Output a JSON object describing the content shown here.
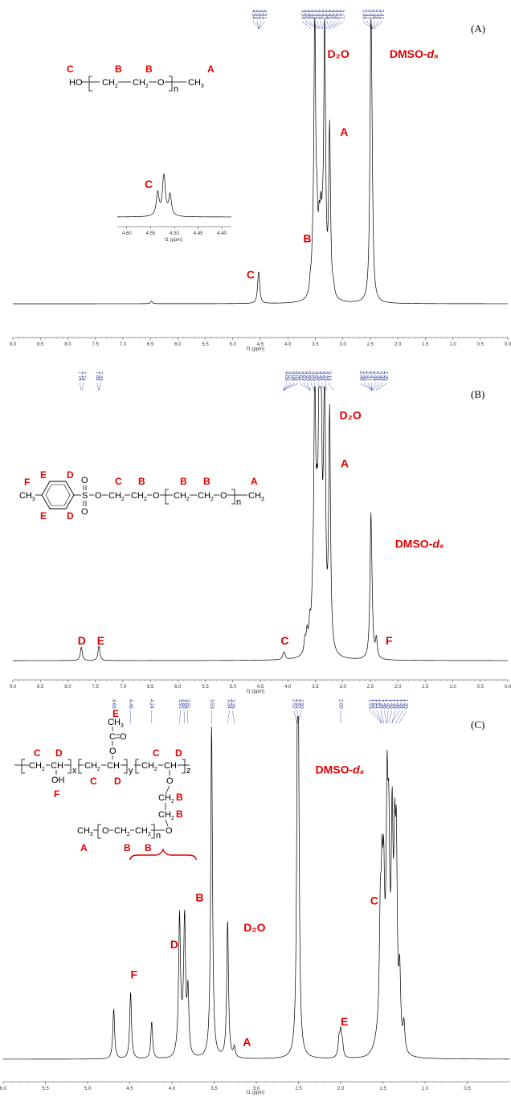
{
  "colors": {
    "spectrum": "#000000",
    "annotation": "#e00000",
    "peak_list": "#2b3aa0",
    "axis": "#333333"
  },
  "chart_data": [
    {
      "type": "line",
      "panel_label": "(A)",
      "xlabel": "f1 (ppm)",
      "xlim": [
        9.0,
        0.0
      ],
      "x_reversed": true,
      "x_ticks": [
        "9.0",
        "8.5",
        "8.0",
        "7.5",
        "7.0",
        "6.5",
        "6.0",
        "5.5",
        "5.0",
        "4.5",
        "4.0",
        "3.5",
        "3.0",
        "2.5",
        "2.0",
        "1.5",
        "1.0",
        "0.5",
        "0.0"
      ],
      "peak_list_groups": [
        [
          "4.54",
          "4.53",
          "4.52",
          "4.51"
        ],
        [
          "3.59",
          "3.50",
          "3.46",
          "3.44",
          "3.42",
          "3.39",
          "3.37",
          "3.34",
          "3.30",
          "3.26",
          "3.23",
          "3.17"
        ],
        [
          "2.49",
          "2.47",
          "2.47",
          "2.46",
          "2.44",
          "2.41"
        ]
      ],
      "peaks": [
        {
          "ppm": 4.54,
          "height": 0.035
        },
        {
          "ppm": 4.53,
          "height": 0.055
        },
        {
          "ppm": 4.52,
          "height": 0.04
        },
        {
          "ppm": 3.59,
          "height": 0.04
        },
        {
          "ppm": 3.55,
          "height": 0.07
        },
        {
          "ppm": 3.51,
          "height": 1.0
        },
        {
          "ppm": 3.47,
          "height": 0.2
        },
        {
          "ppm": 3.43,
          "height": 0.17
        },
        {
          "ppm": 3.4,
          "height": 0.2
        },
        {
          "ppm": 3.37,
          "height": 0.12
        },
        {
          "ppm": 3.33,
          "height": 0.98
        },
        {
          "ppm": 3.24,
          "height": 0.6
        },
        {
          "ppm": 3.17,
          "height": 0.03
        },
        {
          "ppm": 2.49,
          "height": 0.92
        },
        {
          "ppm": 2.47,
          "height": 0.3
        },
        {
          "ppm": 6.48,
          "height": 0.01
        }
      ],
      "annotations": [
        {
          "text": "D₂O",
          "ppm": 3.28,
          "height": 0.88
        },
        {
          "text": "DMSO-d₆",
          "ppm": 2.15,
          "height": 0.88
        },
        {
          "text": "A",
          "ppm": 3.05,
          "height": 0.6
        },
        {
          "text": "B",
          "ppm": 3.72,
          "height": 0.22
        },
        {
          "text": "C",
          "ppm": 4.75,
          "height": 0.09
        }
      ],
      "inset": {
        "label": "C",
        "xlabel": "f1 (ppm)",
        "xlim": [
          4.62,
          4.38
        ],
        "x_ticks": [
          "4.60",
          "4.55",
          "4.50",
          "4.45",
          "4.40"
        ],
        "peaks": [
          {
            "ppm": 4.535,
            "height": 0.55
          },
          {
            "ppm": 4.522,
            "height": 1.0
          },
          {
            "ppm": 4.509,
            "height": 0.5
          }
        ]
      },
      "structure_labels": [
        "C",
        "B",
        "B",
        "A"
      ]
    },
    {
      "type": "line",
      "panel_label": "(B)",
      "xlabel": "f1 (ppm)",
      "xlim": [
        9.0,
        0.0
      ],
      "x_reversed": true,
      "x_ticks": [
        "9.0",
        "8.5",
        "8.0",
        "7.5",
        "7.0",
        "6.5",
        "6.0",
        "5.5",
        "5.0",
        "4.5",
        "4.0",
        "3.5",
        "3.0",
        "2.5",
        "2.0",
        "1.5",
        "1.0",
        "0.5",
        "0.0"
      ],
      "peak_list_groups": [
        [
          "7.76",
          "7.74"
        ],
        [
          "7.44",
          "7.43"
        ],
        [
          "4.08",
          "4.07",
          "4.06",
          "4.05",
          "3.62",
          "3.60",
          "3.59",
          "3.53",
          "3.50",
          "3.39",
          "3.34",
          "3.29",
          "3.18"
        ],
        [
          "2.49",
          "2.48",
          "2.47",
          "2.47",
          "2.46",
          "2.44",
          "2.39",
          "2.35"
        ]
      ],
      "peaks": [
        {
          "ppm": 7.76,
          "height": 0.025
        },
        {
          "ppm": 7.75,
          "height": 0.028
        },
        {
          "ppm": 7.44,
          "height": 0.03
        },
        {
          "ppm": 7.43,
          "height": 0.028
        },
        {
          "ppm": 4.08,
          "height": 0.015
        },
        {
          "ppm": 4.06,
          "height": 0.02
        },
        {
          "ppm": 3.69,
          "height": 0.05
        },
        {
          "ppm": 3.65,
          "height": 0.07
        },
        {
          "ppm": 3.6,
          "height": 0.09
        },
        {
          "ppm": 3.55,
          "height": 0.11
        },
        {
          "ppm": 3.51,
          "height": 1.0
        },
        {
          "ppm": 3.47,
          "height": 0.3
        },
        {
          "ppm": 3.43,
          "height": 0.7
        },
        {
          "ppm": 3.41,
          "height": 0.72
        },
        {
          "ppm": 3.39,
          "height": 0.4
        },
        {
          "ppm": 3.35,
          "height": 0.15
        },
        {
          "ppm": 3.33,
          "height": 0.95
        },
        {
          "ppm": 3.24,
          "height": 0.88
        },
        {
          "ppm": 2.49,
          "height": 0.5
        },
        {
          "ppm": 2.47,
          "height": 0.1
        },
        {
          "ppm": 2.39,
          "height": 0.07
        }
      ],
      "annotations": [
        {
          "text": "D₂O",
          "ppm": 3.06,
          "height": 0.9
        },
        {
          "text": "A",
          "ppm": 3.04,
          "height": 0.72
        },
        {
          "text": "DMSO-d₆",
          "ppm": 2.05,
          "height": 0.42
        },
        {
          "text": "F",
          "ppm": 2.22,
          "height": 0.06
        },
        {
          "text": "C",
          "ppm": 4.13,
          "height": 0.06
        },
        {
          "text": "D",
          "ppm": 7.82,
          "height": 0.06
        },
        {
          "text": "E",
          "ppm": 7.47,
          "height": 0.06
        }
      ],
      "structure_labels": [
        "F",
        "E",
        "D",
        "E",
        "D",
        "C",
        "B",
        "B",
        "B",
        "A"
      ]
    },
    {
      "type": "line",
      "panel_label": "(C)",
      "xlabel": "f1 (ppm)",
      "xlim": [
        6.0,
        0.0
      ],
      "x_reversed": true,
      "x_ticks": [
        "6.0",
        "5.5",
        "5.0",
        "4.5",
        "4.0",
        "3.5",
        "3.0",
        "2.5",
        "2.0",
        "1.5",
        "1.0",
        "0.5"
      ],
      "x_tick_values": [
        6.0,
        5.5,
        5.0,
        4.5,
        4.0,
        3.5,
        3.0,
        2.5,
        2.0,
        1.5,
        1.0,
        0.5
      ],
      "peak_list_groups": [
        [
          "4.69"
        ],
        [
          "4.49"
        ],
        [
          "4.24"
        ],
        [
          "3.91",
          "3.85",
          "3.81"
        ],
        [
          "3.53"
        ],
        [
          "3.34",
          "3.26"
        ],
        [
          "2.52",
          "2.51",
          "2.50"
        ],
        [
          "2.00"
        ],
        [
          "1.53",
          "1.52",
          "1.51",
          "1.49",
          "1.46",
          "1.45",
          "1.43",
          "1.39",
          "1.39",
          "1.34",
          "1.30"
        ]
      ],
      "peaks": [
        {
          "ppm": 4.69,
          "height": 0.15
        },
        {
          "ppm": 4.49,
          "height": 0.2
        },
        {
          "ppm": 4.24,
          "height": 0.11
        },
        {
          "ppm": 3.91,
          "height": 0.38
        },
        {
          "ppm": 3.85,
          "height": 0.37
        },
        {
          "ppm": 3.81,
          "height": 0.18
        },
        {
          "ppm": 3.53,
          "height": 1.0
        },
        {
          "ppm": 3.34,
          "height": 0.41
        },
        {
          "ppm": 3.26,
          "height": 0.03
        },
        {
          "ppm": 2.51,
          "height": 0.98
        },
        {
          "ppm": 2.5,
          "height": 0.5
        },
        {
          "ppm": 2.02,
          "height": 0.05
        },
        {
          "ppm": 2.0,
          "height": 0.07
        },
        {
          "ppm": 1.98,
          "height": 0.04
        },
        {
          "ppm": 1.53,
          "height": 0.3
        },
        {
          "ppm": 1.51,
          "height": 0.35
        },
        {
          "ppm": 1.49,
          "height": 0.35
        },
        {
          "ppm": 1.45,
          "height": 0.58
        },
        {
          "ppm": 1.43,
          "height": 0.45
        },
        {
          "ppm": 1.39,
          "height": 0.55
        },
        {
          "ppm": 1.36,
          "height": 0.45
        },
        {
          "ppm": 1.34,
          "height": 0.5
        },
        {
          "ppm": 1.3,
          "height": 0.2
        },
        {
          "ppm": 1.25,
          "height": 0.08
        }
      ],
      "annotations": [
        {
          "text": "DMSO-d₆",
          "ppm": 2.3,
          "height": 0.85
        },
        {
          "text": "B",
          "ppm": 3.72,
          "height": 0.47
        },
        {
          "text": "D₂O",
          "ppm": 3.15,
          "height": 0.38
        },
        {
          "text": "D",
          "ppm": 4.02,
          "height": 0.33
        },
        {
          "text": "A",
          "ppm": 3.16,
          "height": 0.04
        },
        {
          "text": "F",
          "ppm": 4.49,
          "height": 0.24
        },
        {
          "text": "E",
          "ppm": 2.0,
          "height": 0.1
        },
        {
          "text": "C",
          "ppm": 1.65,
          "height": 0.46
        }
      ],
      "structure_labels": [
        "E",
        "C",
        "D",
        "C",
        "D",
        "C",
        "D",
        "F",
        "B",
        "B",
        "A",
        "B",
        "B"
      ]
    }
  ]
}
